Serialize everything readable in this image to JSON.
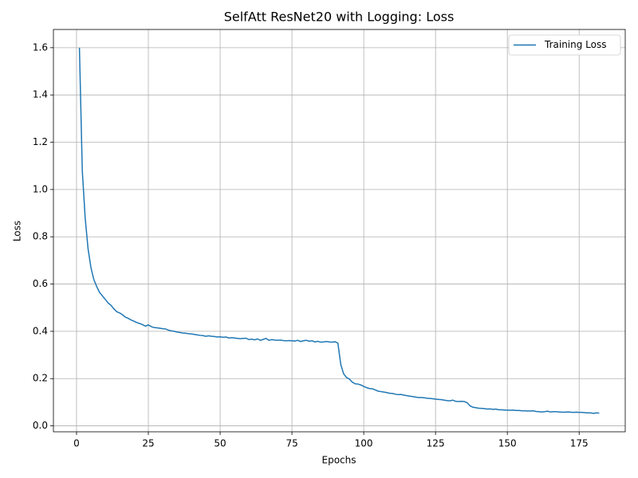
{
  "chart_data": {
    "type": "line",
    "title": "SelfAtt ResNet20 with Logging: Loss",
    "x_label": "Epochs",
    "y_label": "Loss",
    "x": [
      1,
      2,
      3,
      4,
      5,
      6,
      7,
      8,
      9,
      10,
      11,
      12,
      13,
      14,
      15,
      16,
      17,
      18,
      19,
      20,
      21,
      22,
      23,
      24,
      25,
      26,
      27,
      28,
      29,
      30,
      31,
      32,
      33,
      34,
      35,
      36,
      37,
      38,
      39,
      40,
      41,
      42,
      43,
      44,
      45,
      46,
      47,
      48,
      49,
      50,
      51,
      52,
      53,
      54,
      55,
      56,
      57,
      58,
      59,
      60,
      61,
      62,
      63,
      64,
      65,
      66,
      67,
      68,
      69,
      70,
      71,
      72,
      73,
      74,
      75,
      76,
      77,
      78,
      79,
      80,
      81,
      82,
      83,
      84,
      85,
      86,
      87,
      88,
      89,
      90,
      91,
      92,
      93,
      94,
      95,
      96,
      97,
      98,
      99,
      100,
      101,
      102,
      103,
      104,
      105,
      106,
      107,
      108,
      109,
      110,
      111,
      112,
      113,
      114,
      115,
      116,
      117,
      118,
      119,
      120,
      121,
      122,
      123,
      124,
      125,
      126,
      127,
      128,
      129,
      130,
      131,
      132,
      133,
      134,
      135,
      136,
      137,
      138,
      139,
      140,
      141,
      142,
      143,
      144,
      145,
      146,
      147,
      148,
      149,
      150,
      151,
      152,
      153,
      154,
      155,
      156,
      157,
      158,
      159,
      160,
      161,
      162,
      163,
      164,
      165,
      166,
      167,
      168,
      169,
      170,
      171,
      172,
      173,
      174,
      175,
      176,
      177,
      178,
      179,
      180,
      181,
      182
    ],
    "series": [
      {
        "name": "Training Loss",
        "color": "#1f77b4",
        "values": [
          1.6,
          1.08,
          0.88,
          0.75,
          0.67,
          0.62,
          0.59,
          0.565,
          0.55,
          0.535,
          0.52,
          0.51,
          0.495,
          0.483,
          0.478,
          0.47,
          0.46,
          0.455,
          0.448,
          0.443,
          0.437,
          0.433,
          0.428,
          0.422,
          0.427,
          0.42,
          0.416,
          0.415,
          0.413,
          0.411,
          0.41,
          0.405,
          0.402,
          0.4,
          0.397,
          0.395,
          0.393,
          0.392,
          0.39,
          0.389,
          0.387,
          0.385,
          0.383,
          0.382,
          0.379,
          0.381,
          0.379,
          0.378,
          0.376,
          0.377,
          0.375,
          0.376,
          0.372,
          0.373,
          0.372,
          0.37,
          0.369,
          0.37,
          0.371,
          0.365,
          0.367,
          0.364,
          0.368,
          0.362,
          0.366,
          0.37,
          0.362,
          0.365,
          0.363,
          0.362,
          0.363,
          0.361,
          0.36,
          0.361,
          0.36,
          0.359,
          0.362,
          0.357,
          0.36,
          0.362,
          0.358,
          0.36,
          0.355,
          0.358,
          0.354,
          0.355,
          0.357,
          0.355,
          0.354,
          0.356,
          0.35,
          0.26,
          0.22,
          0.205,
          0.198,
          0.185,
          0.178,
          0.177,
          0.173,
          0.167,
          0.162,
          0.158,
          0.157,
          0.152,
          0.147,
          0.145,
          0.143,
          0.141,
          0.138,
          0.137,
          0.134,
          0.132,
          0.133,
          0.13,
          0.128,
          0.126,
          0.124,
          0.122,
          0.12,
          0.12,
          0.119,
          0.117,
          0.116,
          0.115,
          0.113,
          0.112,
          0.111,
          0.109,
          0.107,
          0.106,
          0.109,
          0.104,
          0.103,
          0.104,
          0.103,
          0.098,
          0.085,
          0.079,
          0.077,
          0.075,
          0.074,
          0.073,
          0.071,
          0.072,
          0.07,
          0.071,
          0.068,
          0.068,
          0.067,
          0.067,
          0.066,
          0.067,
          0.065,
          0.065,
          0.064,
          0.064,
          0.063,
          0.063,
          0.064,
          0.061,
          0.06,
          0.059,
          0.06,
          0.062,
          0.059,
          0.06,
          0.06,
          0.059,
          0.058,
          0.058,
          0.059,
          0.058,
          0.057,
          0.058,
          0.057,
          0.057,
          0.056,
          0.055,
          0.055,
          0.053,
          0.055,
          0.054
        ]
      }
    ],
    "xlim": [
      -8.05,
      191.05
    ],
    "xticks": [
      0,
      25,
      50,
      75,
      100,
      125,
      150,
      175
    ],
    "ylim": [
      -0.025,
      1.677
    ],
    "yticks": [
      {
        "value": 0,
        "label": "0.0"
      },
      0.2,
      0.4,
      0.6,
      0.8,
      {
        "value": 1,
        "label": "1.0"
      },
      1.2,
      1.4,
      1.6
    ],
    "grid": true,
    "legend": "upper right"
  }
}
